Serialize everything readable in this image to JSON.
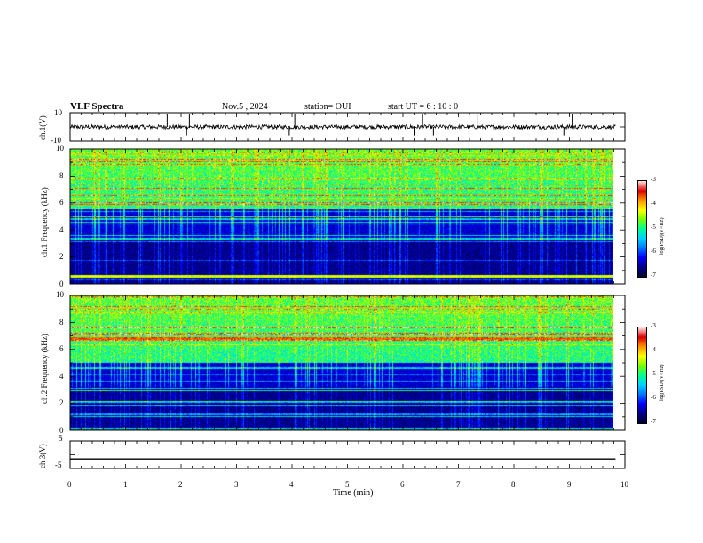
{
  "header": {
    "title": "VLF Spectra",
    "date": "Nov.5 , 2024",
    "station": "station= OUI",
    "start_ut": "start UT = 6 : 10 : 0"
  },
  "colors": {
    "spectrum_stops": [
      "#000033",
      "#00008b",
      "#0000ff",
      "#0078ff",
      "#00d2ff",
      "#00ff96",
      "#78ff00",
      "#ffff00",
      "#ff9600",
      "#dc0000",
      "#ffdcdc"
    ]
  },
  "chart_data": [
    {
      "type": "line",
      "name": "ch1-waveform",
      "ylabel": "ch.1(V)",
      "y_ticks": [
        "10",
        "-10"
      ],
      "ylim": [
        -10,
        10
      ],
      "x_range_min": [
        0,
        9.83
      ],
      "baseline_v": 0,
      "noise_amplitude_v": 1.5,
      "spike_times_min": [
        1.75,
        2.1,
        2.15,
        3.95,
        4.05,
        6.2,
        6.35,
        6.55,
        7.35,
        8.9,
        9.05
      ]
    },
    {
      "type": "heatmap",
      "name": "ch1-spectrogram",
      "ylabel": "ch.1 Frequency (kHz)",
      "yticks": [
        "10",
        "8",
        "6",
        "4",
        "2",
        "0"
      ],
      "ylim": [
        0,
        10
      ],
      "colorbar": {
        "label": "log(PSD)(V²/Hz)",
        "ticks": [
          "-3",
          "-4",
          "-5",
          "-6",
          "-7"
        ],
        "range": [
          -7,
          -3
        ]
      },
      "features": {
        "emission_band_khz": [
          5.5,
          10
        ],
        "strong_line_khz": 0.5
      }
    },
    {
      "type": "heatmap",
      "name": "ch2-spectrogram",
      "ylabel": "ch.2 Frequency (kHz)",
      "yticks": [
        "10",
        "8",
        "6",
        "4",
        "2",
        "0"
      ],
      "ylim": [
        0,
        10
      ],
      "colorbar": {
        "label": "log(PSD)(V²/Hz)",
        "ticks": [
          "-3",
          "-4",
          "-5",
          "-6",
          "-7"
        ],
        "range": [
          -7,
          -3
        ]
      },
      "features": {
        "emission_band_khz": [
          5.0,
          10
        ],
        "strong_line_khz": 6.8
      }
    },
    {
      "type": "line",
      "name": "ch3-waveform",
      "ylabel": "ch.3(V)",
      "y_ticks": [
        "5",
        "-5"
      ],
      "ylim": [
        -5,
        5
      ],
      "x_range_min": [
        0,
        9.83
      ],
      "constant_v": -1.5
    }
  ],
  "x_axis": {
    "label": "Time (min)",
    "ticks": [
      "0",
      "1",
      "2",
      "3",
      "4",
      "5",
      "6",
      "7",
      "8",
      "9",
      "10"
    ],
    "range": [
      0,
      10
    ]
  }
}
